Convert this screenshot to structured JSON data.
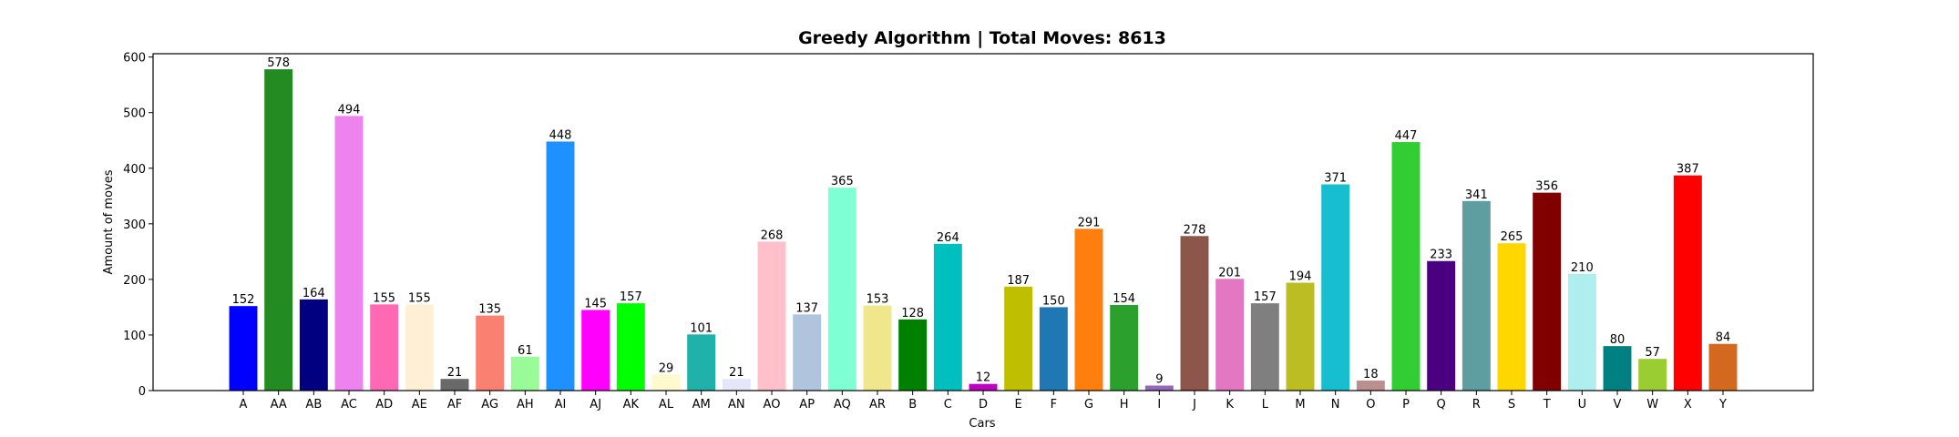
{
  "chart_data": {
    "type": "bar",
    "title": "Greedy Algorithm | Total Moves: 8613",
    "xlabel": "Cars",
    "ylabel": "Amount of moves",
    "ylim": [
      0,
      606
    ],
    "yticks": [
      0,
      100,
      200,
      300,
      400,
      500,
      600
    ],
    "grid": false,
    "categories": [
      "A",
      "AA",
      "AB",
      "AC",
      "AD",
      "AE",
      "AF",
      "AG",
      "AH",
      "AI",
      "AJ",
      "AK",
      "AL",
      "AM",
      "AN",
      "AO",
      "AP",
      "AQ",
      "AR",
      "B",
      "C",
      "D",
      "E",
      "F",
      "G",
      "H",
      "I",
      "J",
      "K",
      "L",
      "M",
      "N",
      "O",
      "P",
      "Q",
      "R",
      "S",
      "T",
      "U",
      "V",
      "W",
      "X",
      "Y"
    ],
    "values": [
      152,
      578,
      164,
      494,
      155,
      155,
      21,
      135,
      61,
      448,
      145,
      157,
      29,
      101,
      21,
      268,
      137,
      365,
      153,
      128,
      264,
      12,
      187,
      150,
      291,
      154,
      9,
      278,
      201,
      157,
      194,
      371,
      18,
      447,
      233,
      341,
      265,
      356,
      210,
      80,
      57,
      387,
      84
    ],
    "colors": [
      "#0000ff",
      "#228b22",
      "#000080",
      "#ee82ee",
      "#ff69b4",
      "#ffefd5",
      "#696969",
      "#fa8072",
      "#98fb98",
      "#1e90ff",
      "#ff00ff",
      "#00ff00",
      "#fffacd",
      "#20b2aa",
      "#e6e6fa",
      "#ffc0cb",
      "#b0c4de",
      "#7fffd4",
      "#f0e68c",
      "#008000",
      "#00bfbf",
      "#bf00bf",
      "#bfbf00",
      "#1f77b4",
      "#ff7f0e",
      "#2ca02c",
      "#9467bd",
      "#8c564b",
      "#e377c2",
      "#7f7f7f",
      "#bcbd22",
      "#17becf",
      "#bc8f8f",
      "#32cd32",
      "#4b0082",
      "#5f9ea0",
      "#ffd700",
      "#800000",
      "#afeeee",
      "#008080",
      "#9acd32",
      "#ff0000",
      "#d2691e"
    ]
  }
}
